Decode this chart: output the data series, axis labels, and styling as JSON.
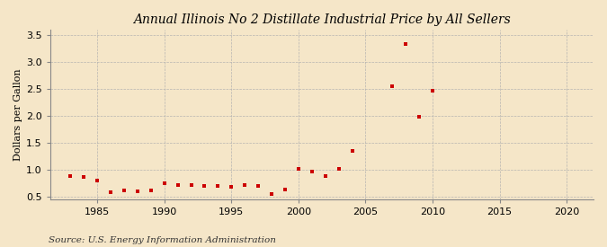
{
  "title": "Annual Illinois No 2 Distillate Industrial Price by All Sellers",
  "ylabel": "Dollars per Gallon",
  "source": "Source: U.S. Energy Information Administration",
  "background_color": "#f5e6c8",
  "xlim": [
    1981.5,
    2022
  ],
  "ylim": [
    0.45,
    3.6
  ],
  "xticks": [
    1985,
    1990,
    1995,
    2000,
    2005,
    2010,
    2015,
    2020
  ],
  "yticks": [
    0.5,
    1.0,
    1.5,
    2.0,
    2.5,
    3.0,
    3.5
  ],
  "marker_color": "#cc0000",
  "marker_size": 8,
  "years": [
    1983,
    1984,
    1985,
    1986,
    1987,
    1988,
    1989,
    1990,
    1991,
    1992,
    1993,
    1994,
    1995,
    1996,
    1997,
    1998,
    1999,
    2000,
    2001,
    2002,
    2003,
    2004,
    2007,
    2008,
    2009,
    2010
  ],
  "values": [
    0.88,
    0.86,
    0.8,
    0.58,
    0.62,
    0.59,
    0.61,
    0.75,
    0.72,
    0.72,
    0.7,
    0.7,
    0.68,
    0.72,
    0.7,
    0.55,
    0.63,
    1.01,
    0.97,
    0.88,
    1.01,
    1.35,
    2.54,
    3.33,
    1.98,
    2.46
  ],
  "title_fontsize": 10,
  "ylabel_fontsize": 8,
  "tick_fontsize": 8,
  "source_fontsize": 7.5
}
